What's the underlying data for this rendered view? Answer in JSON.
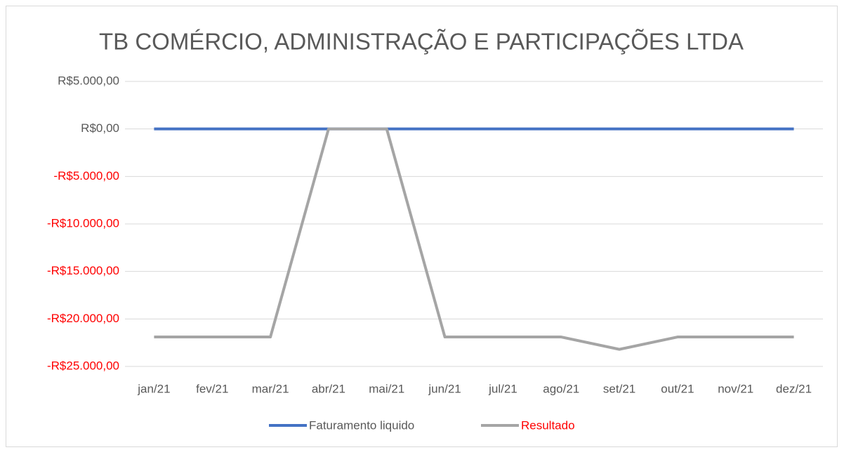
{
  "chart_data": {
    "type": "line",
    "title": "TB COMÉRCIO, ADMINISTRAÇÃO E PARTICIPAÇÕES LTDA",
    "categories": [
      "jan/21",
      "fev/21",
      "mar/21",
      "abr/21",
      "mai/21",
      "jun/21",
      "jul/21",
      "ago/21",
      "set/21",
      "out/21",
      "nov/21",
      "dez/21"
    ],
    "series": [
      {
        "name": "Faturamento liquido",
        "color": "#4472c4",
        "label_color": "#595959",
        "values": [
          0,
          0,
          0,
          0,
          0,
          0,
          0,
          0,
          0,
          0,
          0,
          0
        ]
      },
      {
        "name": "Resultado",
        "color": "#a5a5a5",
        "label_color": "#ff0000",
        "values": [
          -21900,
          -21900,
          -21900,
          0,
          0,
          -21900,
          -21900,
          -21900,
          -23200,
          -21900,
          -21900,
          -21900
        ]
      }
    ],
    "ylim": [
      -25000,
      5000
    ],
    "yticks": [
      {
        "value": -25000,
        "label": "-R$25.000,00"
      },
      {
        "value": -20000,
        "label": "-R$20.000,00"
      },
      {
        "value": -15000,
        "label": "-R$15.000,00"
      },
      {
        "value": -10000,
        "label": "-R$10.000,00"
      },
      {
        "value": -5000,
        "label": "-R$5.000,00"
      },
      {
        "value": 0,
        "label": "R$0,00"
      },
      {
        "value": 5000,
        "label": "R$5.000,00"
      }
    ],
    "grid": true,
    "legend": "bottom",
    "negative_tick_color": "#ff0000",
    "tick_color": "#595959"
  }
}
